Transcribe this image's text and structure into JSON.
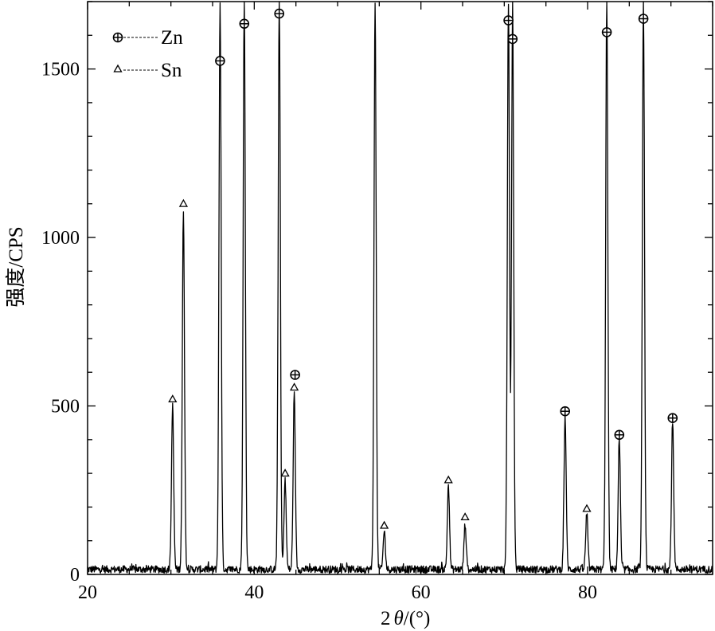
{
  "chart_data": {
    "type": "line",
    "xlabel_parts": {
      "prefix": "2",
      "symbol": "θ",
      "suffix": "/(°)"
    },
    "ylabel": "强度/CPS",
    "xlim": [
      20,
      95
    ],
    "ylim": [
      0,
      1700
    ],
    "x_ticks": [
      20,
      40,
      60,
      80
    ],
    "y_ticks": [
      0,
      500,
      1000,
      1500
    ],
    "x_minor_step": 5,
    "y_minor_step": 100,
    "grid": false,
    "legend_position": "top-left",
    "legend": [
      {
        "label": "Zn",
        "marker": "circle-cross"
      },
      {
        "label": "Sn",
        "marker": "triangle"
      }
    ],
    "peaks": [
      {
        "x": 30.2,
        "y": 500,
        "phase": "Sn",
        "marker_y": 505
      },
      {
        "x": 31.5,
        "y": 1080,
        "phase": "Sn",
        "marker_y": 1085
      },
      {
        "x": 35.9,
        "y": 1700,
        "phase": "Zn",
        "marker_y": 1510
      },
      {
        "x": 38.8,
        "y": 1700,
        "phase": "Zn",
        "marker_y": 1620
      },
      {
        "x": 43.0,
        "y": 1700,
        "phase": "Zn",
        "marker_y": 1650
      },
      {
        "x": 43.7,
        "y": 280,
        "phase": "Sn",
        "marker_y": 285
      },
      {
        "x": 44.8,
        "y": 535,
        "phase": "Sn",
        "marker_y": 540
      },
      {
        "x": 54.5,
        "y": 1700,
        "phase": "Zn",
        "marker_y": null
      },
      {
        "x": 55.6,
        "y": 130,
        "phase": "Sn",
        "marker_y": 130
      },
      {
        "x": 63.3,
        "y": 265,
        "phase": "Sn",
        "marker_y": 265
      },
      {
        "x": 65.3,
        "y": 150,
        "phase": "Sn",
        "marker_y": 155
      },
      {
        "x": 70.5,
        "y": 1700,
        "phase": "Zn",
        "marker_y": 1630
      },
      {
        "x": 71.0,
        "y": 1700,
        "phase": "Zn",
        "marker_y": 1575
      },
      {
        "x": 77.3,
        "y": 470,
        "phase": "Zn",
        "marker_y": 470
      },
      {
        "x": 79.9,
        "y": 180,
        "phase": "Sn",
        "marker_y": 180
      },
      {
        "x": 82.3,
        "y": 1700,
        "phase": "Zn",
        "marker_y": 1595
      },
      {
        "x": 83.8,
        "y": 400,
        "phase": "Zn",
        "marker_y": 400
      },
      {
        "x": 86.7,
        "y": 1700,
        "phase": "Zn",
        "marker_y": 1635
      },
      {
        "x": 90.2,
        "y": 450,
        "phase": "Zn",
        "marker_y": 450
      }
    ],
    "extra_markers": [
      {
        "x": 44.9,
        "y": 578,
        "phase": "Zn"
      }
    ],
    "background_level": 15
  }
}
